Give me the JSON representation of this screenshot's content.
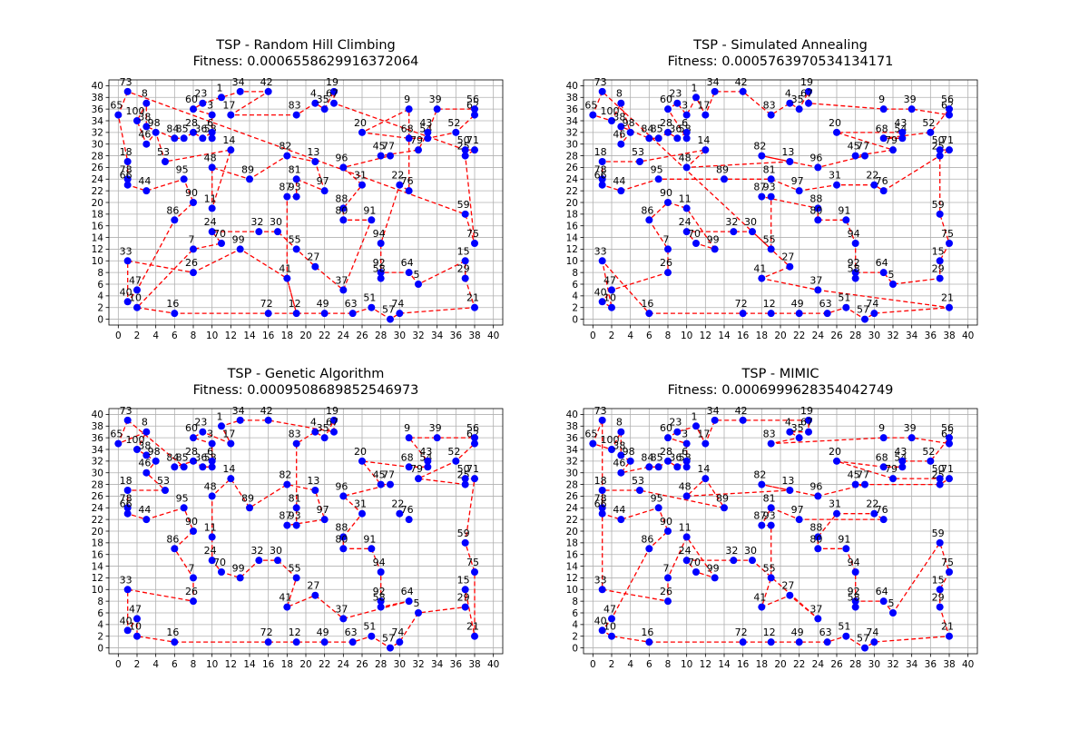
{
  "colors": {
    "route": "#ff0000",
    "city_fill": "#0000ff",
    "grid": "#b0b0b0",
    "axis": "#000000",
    "background": "#ffffff"
  },
  "chart_data": [
    {
      "type": "scatter",
      "title": "TSP - Random Hill Climbing",
      "subtitle": "Fitness: 0.0006558629916372064",
      "xlim": [
        -1,
        41
      ],
      "ylim": [
        -1,
        41
      ],
      "xticks": [
        0,
        2,
        4,
        6,
        8,
        10,
        12,
        14,
        16,
        18,
        20,
        22,
        24,
        26,
        28,
        30,
        32,
        34,
        36,
        38,
        40
      ],
      "yticks": [
        0,
        2,
        4,
        6,
        8,
        10,
        12,
        14,
        16,
        18,
        20,
        22,
        24,
        26,
        28,
        30,
        32,
        34,
        36,
        38,
        40
      ],
      "grid": true,
      "cities": [
        {
          "label": "73",
          "x": 1,
          "y": 39
        },
        {
          "label": "65",
          "x": 0,
          "y": 35
        },
        {
          "label": "8",
          "x": 3,
          "y": 37
        },
        {
          "label": "100",
          "x": 2,
          "y": 34
        },
        {
          "label": "38",
          "x": 3,
          "y": 33
        },
        {
          "label": "98",
          "x": 4,
          "y": 32
        },
        {
          "label": "46",
          "x": 3,
          "y": 30
        },
        {
          "label": "60",
          "x": 8,
          "y": 36
        },
        {
          "label": "23",
          "x": 9,
          "y": 37
        },
        {
          "label": "3",
          "x": 10,
          "y": 35
        },
        {
          "label": "1",
          "x": 11,
          "y": 38
        },
        {
          "label": "17",
          "x": 12,
          "y": 35
        },
        {
          "label": "34",
          "x": 13,
          "y": 39
        },
        {
          "label": "42",
          "x": 16,
          "y": 39
        },
        {
          "label": "83",
          "x": 19,
          "y": 35
        },
        {
          "label": "4",
          "x": 21,
          "y": 37
        },
        {
          "label": "35",
          "x": 22,
          "y": 36
        },
        {
          "label": "19",
          "x": 23,
          "y": 39
        },
        {
          "label": "67",
          "x": 23,
          "y": 37
        },
        {
          "label": "9",
          "x": 31,
          "y": 36
        },
        {
          "label": "39",
          "x": 34,
          "y": 36
        },
        {
          "label": "62",
          "x": 38,
          "y": 35
        },
        {
          "label": "56",
          "x": 38,
          "y": 36
        },
        {
          "label": "20",
          "x": 26,
          "y": 32
        },
        {
          "label": "68",
          "x": 31,
          "y": 31
        },
        {
          "label": "54",
          "x": 33,
          "y": 31
        },
        {
          "label": "43",
          "x": 33,
          "y": 32
        },
        {
          "label": "52",
          "x": 36,
          "y": 32
        },
        {
          "label": "28",
          "x": 8,
          "y": 32
        },
        {
          "label": "84",
          "x": 6,
          "y": 31
        },
        {
          "label": "85",
          "x": 7,
          "y": 31
        },
        {
          "label": "36",
          "x": 9,
          "y": 31
        },
        {
          "label": "58",
          "x": 10,
          "y": 31
        },
        {
          "label": "6",
          "x": 10,
          "y": 32
        },
        {
          "label": "14",
          "x": 12,
          "y": 29
        },
        {
          "label": "53",
          "x": 5,
          "y": 27
        },
        {
          "label": "48",
          "x": 10,
          "y": 26
        },
        {
          "label": "18",
          "x": 1,
          "y": 27
        },
        {
          "label": "95",
          "x": 7,
          "y": 24
        },
        {
          "label": "78",
          "x": 1,
          "y": 24
        },
        {
          "label": "66",
          "x": 1,
          "y": 23
        },
        {
          "label": "44",
          "x": 3,
          "y": 22
        },
        {
          "label": "82",
          "x": 18,
          "y": 28
        },
        {
          "label": "13",
          "x": 21,
          "y": 27
        },
        {
          "label": "96",
          "x": 24,
          "y": 26
        },
        {
          "label": "45",
          "x": 28,
          "y": 28
        },
        {
          "label": "77",
          "x": 29,
          "y": 28
        },
        {
          "label": "25",
          "x": 37,
          "y": 28
        },
        {
          "label": "50",
          "x": 37,
          "y": 29
        },
        {
          "label": "71",
          "x": 38,
          "y": 29
        },
        {
          "label": "79",
          "x": 32,
          "y": 29
        },
        {
          "label": "89",
          "x": 14,
          "y": 24
        },
        {
          "label": "81",
          "x": 19,
          "y": 24
        },
        {
          "label": "97",
          "x": 22,
          "y": 22
        },
        {
          "label": "31",
          "x": 26,
          "y": 23
        },
        {
          "label": "22",
          "x": 30,
          "y": 23
        },
        {
          "label": "76",
          "x": 31,
          "y": 22
        },
        {
          "label": "87",
          "x": 18,
          "y": 21
        },
        {
          "label": "93",
          "x": 19,
          "y": 21
        },
        {
          "label": "90",
          "x": 8,
          "y": 20
        },
        {
          "label": "11",
          "x": 10,
          "y": 19
        },
        {
          "label": "88",
          "x": 24,
          "y": 19
        },
        {
          "label": "80",
          "x": 24,
          "y": 17
        },
        {
          "label": "91",
          "x": 27,
          "y": 17
        },
        {
          "label": "86",
          "x": 6,
          "y": 17
        },
        {
          "label": "59",
          "x": 37,
          "y": 18
        },
        {
          "label": "24",
          "x": 10,
          "y": 15
        },
        {
          "label": "70",
          "x": 11,
          "y": 13
        },
        {
          "label": "32",
          "x": 15,
          "y": 15
        },
        {
          "label": "30",
          "x": 17,
          "y": 15
        },
        {
          "label": "99",
          "x": 13,
          "y": 12
        },
        {
          "label": "7",
          "x": 8,
          "y": 12
        },
        {
          "label": "55",
          "x": 19,
          "y": 12
        },
        {
          "label": "94",
          "x": 28,
          "y": 13
        },
        {
          "label": "75",
          "x": 38,
          "y": 13
        },
        {
          "label": "33",
          "x": 1,
          "y": 10
        },
        {
          "label": "26",
          "x": 8,
          "y": 8
        },
        {
          "label": "27",
          "x": 21,
          "y": 9
        },
        {
          "label": "15",
          "x": 37,
          "y": 10
        },
        {
          "label": "64",
          "x": 31,
          "y": 8
        },
        {
          "label": "92",
          "x": 28,
          "y": 8
        },
        {
          "label": "58b",
          "x": 28,
          "y": 7
        },
        {
          "label": "29",
          "x": 37,
          "y": 7
        },
        {
          "label": "5",
          "x": 32,
          "y": 6
        },
        {
          "label": "41",
          "x": 18,
          "y": 7
        },
        {
          "label": "47",
          "x": 2,
          "y": 5
        },
        {
          "label": "37",
          "x": 24,
          "y": 5
        },
        {
          "label": "40",
          "x": 1,
          "y": 3
        },
        {
          "label": "10",
          "x": 2,
          "y": 2
        },
        {
          "label": "21",
          "x": 38,
          "y": 2
        },
        {
          "label": "16",
          "x": 6,
          "y": 1
        },
        {
          "label": "72",
          "x": 16,
          "y": 1
        },
        {
          "label": "12",
          "x": 19,
          "y": 1
        },
        {
          "label": "49",
          "x": 22,
          "y": 1
        },
        {
          "label": "63",
          "x": 25,
          "y": 1
        },
        {
          "label": "51",
          "x": 27,
          "y": 2
        },
        {
          "label": "57",
          "x": 29,
          "y": 0
        },
        {
          "label": "74",
          "x": 30,
          "y": 1
        }
      ],
      "tour": [
        "73",
        "65",
        "18",
        "78",
        "66",
        "44",
        "95",
        "90",
        "86",
        "47",
        "40",
        "33",
        "26",
        "99",
        "41",
        "12",
        "49",
        "63",
        "51",
        "57",
        "74",
        "21",
        "29",
        "15",
        "5",
        "64",
        "92",
        "58b",
        "94",
        "22",
        "76",
        "9",
        "20",
        "68",
        "54",
        "52",
        "62",
        "56",
        "39",
        "43",
        "79",
        "45",
        "77",
        "96",
        "31",
        "88",
        "80",
        "91",
        "37",
        "27",
        "55",
        "30",
        "32",
        "24",
        "70",
        "7",
        "10",
        "16",
        "72",
        "12",
        "41",
        "87",
        "93",
        "81",
        "97",
        "13",
        "82",
        "89",
        "48",
        "11",
        "14",
        "53",
        "98",
        "46",
        "100",
        "8",
        "38",
        "84",
        "85",
        "28",
        "36",
        "6",
        "58",
        "3",
        "60",
        "23",
        "1",
        "34",
        "42",
        "17",
        "83",
        "4",
        "35",
        "19",
        "67",
        "50",
        "71",
        "25",
        "75",
        "59",
        "73"
      ]
    },
    {
      "type": "scatter",
      "title": "TSP - Simulated Annealing",
      "subtitle": "Fitness: 0.0005763970534134171",
      "xlim": [
        -1,
        41
      ],
      "ylim": [
        -1,
        41
      ],
      "xticks": [
        0,
        2,
        4,
        6,
        8,
        10,
        12,
        14,
        16,
        18,
        20,
        22,
        24,
        26,
        28,
        30,
        32,
        34,
        36,
        38,
        40
      ],
      "yticks": [
        0,
        2,
        4,
        6,
        8,
        10,
        12,
        14,
        16,
        18,
        20,
        22,
        24,
        26,
        28,
        30,
        32,
        34,
        36,
        38,
        40
      ],
      "grid": true,
      "tour": [
        "73",
        "65",
        "100",
        "8",
        "98",
        "46",
        "38",
        "84",
        "85",
        "28",
        "36",
        "6",
        "58",
        "60",
        "23",
        "3",
        "1",
        "17",
        "34",
        "42",
        "83",
        "4",
        "35",
        "19",
        "67",
        "9",
        "39",
        "62",
        "56",
        "52",
        "68",
        "54",
        "43",
        "20",
        "79",
        "45",
        "77",
        "96",
        "82",
        "13",
        "48",
        "14",
        "53",
        "18",
        "78",
        "66",
        "44",
        "95",
        "89",
        "81",
        "97",
        "31",
        "22",
        "76",
        "71",
        "50",
        "25",
        "59",
        "75",
        "15",
        "29",
        "5",
        "64",
        "92",
        "58b",
        "94",
        "91",
        "80",
        "88",
        "87",
        "93",
        "55",
        "30",
        "32",
        "24",
        "70",
        "99",
        "11",
        "90",
        "86",
        "7",
        "26",
        "47",
        "40",
        "10",
        "33",
        "16",
        "72",
        "12",
        "49",
        "63",
        "51",
        "57",
        "74",
        "21",
        "37",
        "41",
        "27",
        "73"
      ]
    },
    {
      "type": "scatter",
      "title": "TSP - Genetic Algorithm",
      "subtitle": "Fitness: 0.0009508689852546973",
      "xlim": [
        -1,
        41
      ],
      "ylim": [
        -1,
        41
      ],
      "xticks": [
        0,
        2,
        4,
        6,
        8,
        10,
        12,
        14,
        16,
        18,
        20,
        22,
        24,
        26,
        28,
        30,
        32,
        34,
        36,
        38,
        40
      ],
      "yticks": [
        0,
        2,
        4,
        6,
        8,
        10,
        12,
        14,
        16,
        18,
        20,
        22,
        24,
        26,
        28,
        30,
        32,
        34,
        36,
        38,
        40
      ],
      "grid": true,
      "tour": [
        "73",
        "65",
        "8",
        "100",
        "38",
        "98",
        "46",
        "53",
        "18",
        "78",
        "66",
        "44",
        "95",
        "90",
        "86",
        "7",
        "26",
        "33",
        "40",
        "47",
        "10",
        "16",
        "72",
        "12",
        "49",
        "63",
        "51",
        "57",
        "74",
        "5",
        "29",
        "15",
        "21",
        "75",
        "59",
        "71",
        "50",
        "25",
        "79",
        "52",
        "62",
        "56",
        "39",
        "9",
        "43",
        "54",
        "68",
        "20",
        "45",
        "77",
        "96",
        "31",
        "88",
        "80",
        "91",
        "94",
        "92",
        "58b",
        "64",
        "37",
        "27",
        "41",
        "55",
        "30",
        "32",
        "99",
        "70",
        "24",
        "11",
        "48",
        "14",
        "89",
        "82",
        "13",
        "97",
        "87",
        "93",
        "81",
        "83",
        "4",
        "35",
        "19",
        "67",
        "42",
        "34",
        "1",
        "17",
        "23",
        "60",
        "3",
        "6",
        "58",
        "36",
        "28",
        "84",
        "85",
        "73"
      ]
    },
    {
      "type": "scatter",
      "title": "TSP - MIMIC",
      "subtitle": "Fitness: 0.0006999628354042749",
      "xlim": [
        -1,
        41
      ],
      "ylim": [
        -1,
        41
      ],
      "xticks": [
        0,
        2,
        4,
        6,
        8,
        10,
        12,
        14,
        16,
        18,
        20,
        22,
        24,
        26,
        28,
        30,
        32,
        34,
        36,
        38,
        40
      ],
      "yticks": [
        0,
        2,
        4,
        6,
        8,
        10,
        12,
        14,
        16,
        18,
        20,
        22,
        24,
        26,
        28,
        30,
        32,
        34,
        36,
        38,
        40
      ],
      "grid": true,
      "tour": [
        "73",
        "65",
        "100",
        "8",
        "38",
        "98",
        "46",
        "84",
        "85",
        "28",
        "36",
        "6",
        "58",
        "3",
        "60",
        "23",
        "1",
        "17",
        "34",
        "42",
        "19",
        "67",
        "4",
        "35",
        "83",
        "9",
        "39",
        "62",
        "56",
        "52",
        "43",
        "54",
        "68",
        "20",
        "79",
        "50",
        "71",
        "25",
        "45",
        "77",
        "96",
        "82",
        "13",
        "48",
        "14",
        "89",
        "53",
        "18",
        "78",
        "66",
        "44",
        "95",
        "90",
        "86",
        "47",
        "40",
        "10",
        "16",
        "72",
        "12",
        "49",
        "63",
        "51",
        "57",
        "74",
        "21",
        "29",
        "15",
        "75",
        "59",
        "5",
        "64",
        "92",
        "58b",
        "94",
        "91",
        "80",
        "88",
        "31",
        "22",
        "76",
        "97",
        "81",
        "87",
        "93",
        "55",
        "41",
        "27",
        "37",
        "30",
        "32",
        "24",
        "70",
        "99",
        "11",
        "7",
        "26",
        "33",
        "73"
      ]
    }
  ]
}
